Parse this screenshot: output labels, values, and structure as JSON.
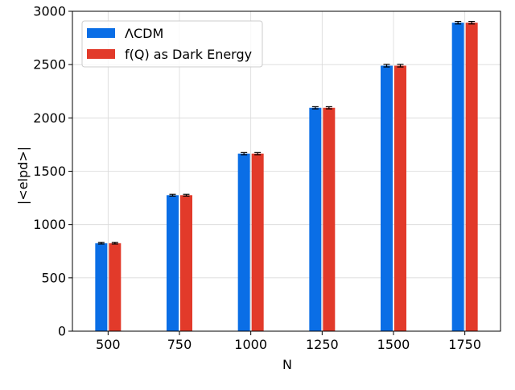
{
  "chart_data": {
    "type": "bar",
    "title": "",
    "xlabel": "N",
    "ylabel": "|<elpd>|",
    "categories": [
      "500",
      "750",
      "1000",
      "1250",
      "1500",
      "1750"
    ],
    "series": [
      {
        "name": "ΛCDM",
        "color": "#0a6ee6",
        "values": [
          825,
          1275,
          1665,
          2095,
          2490,
          2893
        ],
        "errors": [
          8,
          8,
          10,
          10,
          12,
          12
        ]
      },
      {
        "name": "f(Q) as Dark Energy",
        "color": "#e23a2a",
        "values": [
          825,
          1275,
          1665,
          2095,
          2490,
          2893
        ],
        "errors": [
          8,
          8,
          10,
          10,
          12,
          12
        ]
      }
    ],
    "ylim": [
      0,
      3000
    ],
    "yticks": [
      0,
      500,
      1000,
      1500,
      2000,
      2500,
      3000
    ],
    "grid": true,
    "legend_position": "top-left"
  }
}
